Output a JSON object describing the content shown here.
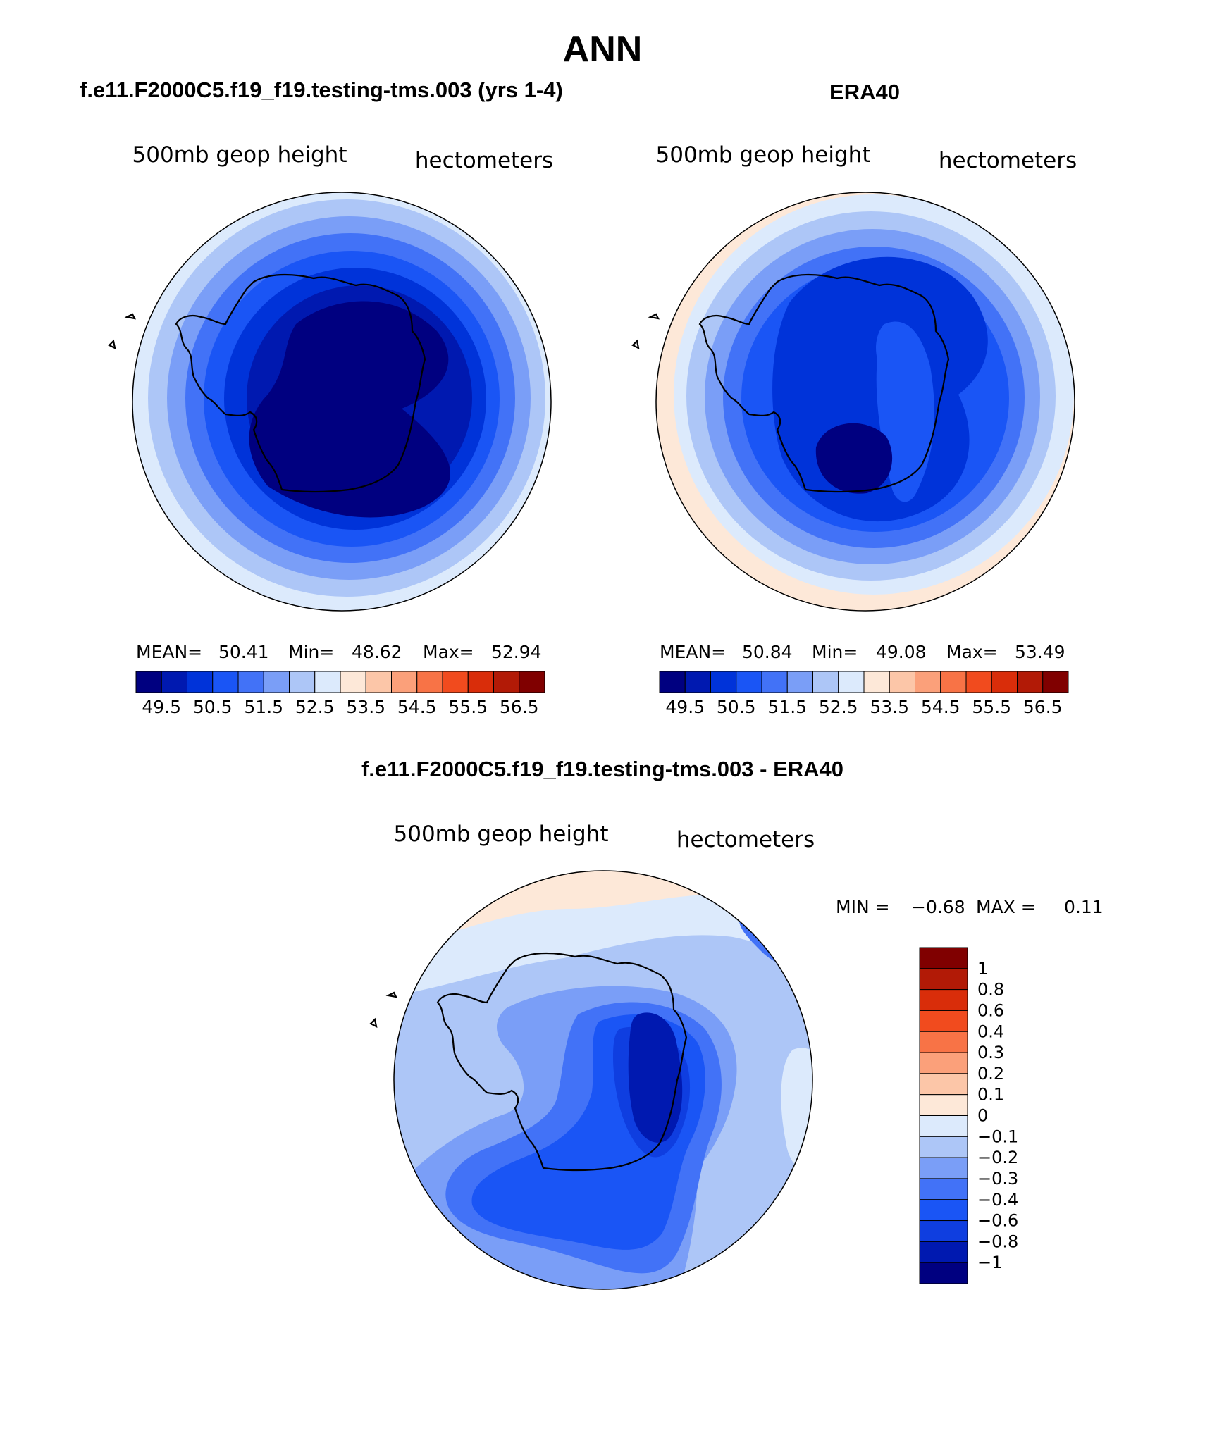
{
  "page": {
    "title": "ANN"
  },
  "colors": {
    "level_fills": [
      "#000080",
      "#0019b0",
      "#0033d9",
      "#1a55f5",
      "#4272f7",
      "#7a9ef7",
      "#adc6f7",
      "#dceafc",
      "#fde8d8",
      "#fcc6a8",
      "#fba07a",
      "#f87346",
      "#f14b1e",
      "#d92d0a",
      "#b21a06",
      "#800000"
    ],
    "diff_fills": [
      "#000080",
      "#0019b0",
      "#0f3ee0",
      "#1a55f5",
      "#4272f7",
      "#7a9ef7",
      "#adc6f7",
      "#dceafc",
      "#fde8d8",
      "#fcc6a8",
      "#fba07a",
      "#f87346",
      "#f14b1e",
      "#d92d0a",
      "#b21a06",
      "#800000"
    ]
  },
  "panels": [
    {
      "case_title": "f.e11.F2000C5.f19_f19.testing-tms.003 (yrs 1-4)",
      "left_label": "500mb geop height",
      "right_label": "hectometers",
      "stats": {
        "mean_label": "MEAN=",
        "mean": "50.41",
        "min_label": "Min=",
        "min": "48.62",
        "max_label": "Max=",
        "max": "52.94"
      },
      "colorbar_labels": [
        "49.5",
        "50.5",
        "51.5",
        "52.5",
        "53.5",
        "54.5",
        "55.5",
        "56.5"
      ]
    },
    {
      "case_title": "ERA40",
      "left_label": "500mb geop height",
      "right_label": "hectometers",
      "stats": {
        "mean_label": "MEAN=",
        "mean": "50.84",
        "min_label": "Min=",
        "min": "49.08",
        "max_label": "Max=",
        "max": "53.49"
      },
      "colorbar_labels": [
        "49.5",
        "50.5",
        "51.5",
        "52.5",
        "53.5",
        "54.5",
        "55.5",
        "56.5"
      ]
    }
  ],
  "diff_panel": {
    "case_title": "f.e11.F2000C5.f19_f19.testing-tms.003 - ERA40",
    "left_label": "500mb geop height",
    "right_label": "hectometers",
    "stats": {
      "min_label": "MIN =",
      "min": "−0.68",
      "max_label": "MAX =",
      "max": "0.11"
    },
    "colorbar_labels": [
      "1",
      "0.8",
      "0.6",
      "0.4",
      "0.3",
      "0.2",
      "0.1",
      "0",
      "−0.1",
      "−0.2",
      "−0.3",
      "−0.4",
      "−0.6",
      "−0.8",
      "−1"
    ]
  }
}
